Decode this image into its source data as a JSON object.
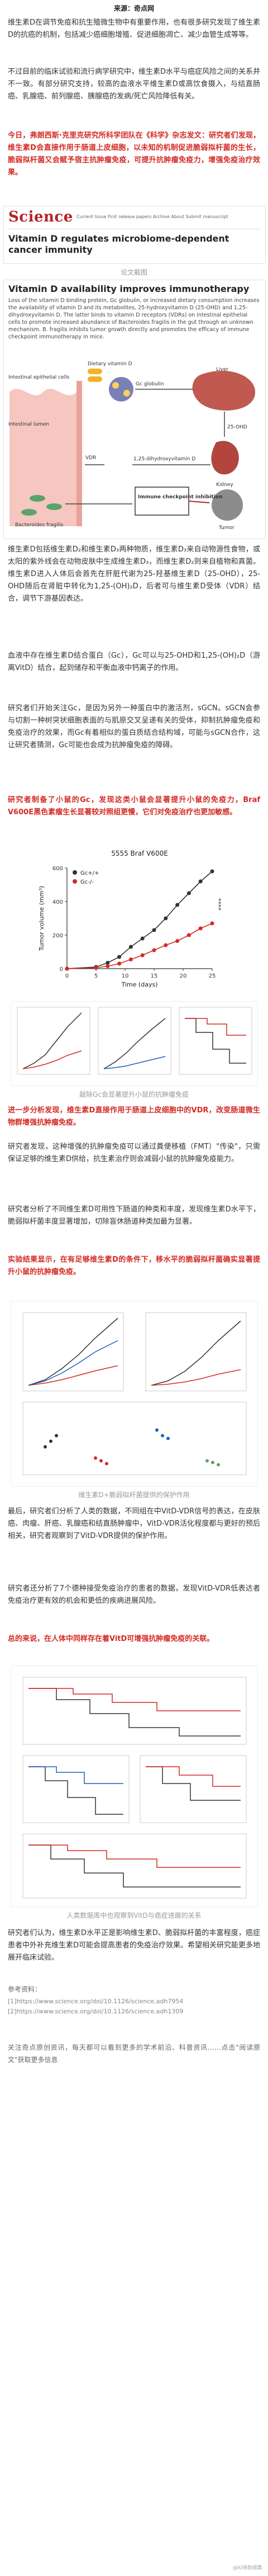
{
  "source_line": "来源：奇点网",
  "p1": "维生素D在调节免疫和抗生殖微生物中有重要作用，也有很多研究发现了维生素D的抗癌的机制，包括减少癌细胞增殖、促进细胞凋亡、减少血管生成等等。",
  "p2": "不过目前的临床试验和流行病学研究中，维生素D水平与癌症风险之间的关系并不一致。有部分研究支持，较高的血液水平维生素D或高饮食摄入，与结直肠癌、乳腺癌、前列腺癌、胰腺癌的发病/死亡风险降低有关。",
  "p3_red": "今日，弗朗西斯·克里克研究所科学团队在《科学》杂志发文：研究者们发现，维生素D会直接作用于肠道上皮细胞，以未知的机制促进脆弱拟杆菌的生长，脆弱拟杆菌又会赋予宿主抗肿瘤免疫，可提升抗肿瘤免疫力，增强免疫治疗效果。",
  "science": {
    "logo": "Science",
    "meta": "Current Issue   First release papers   Archive   About   Submit manuscript",
    "title": "Vitamin D regulates microbiome-dependent cancer immunity",
    "caption": "论文截图"
  },
  "fig1": {
    "heading": "Vitamin D availability improves immunotherapy",
    "body": "Loss of the vitamin D binding protein, Gc globulin, or increased dietary consumption increases the availability of vitamin D and its metabolites, 25-hydroxyvitamin D (25-OHD) and 1,25-dihydroxyvitamin D. The latter binds to vitamin D receptors (VDRs) on intestinal epithelial cells to promote increased abundance of Bacteroides fragilis in the gut through an unknown mechanism. B. fragilis inhibits tumor growth directly and promotes the efficacy of immune checkpoint immunotherapy in mice.",
    "labels": [
      "Dietary vitamin D",
      "Gc globulin",
      "Liver",
      "Intestinal epithelial cells",
      "Intestinal lumen",
      "VDR",
      "25-OHD",
      "1,25-dihydroxyvitamin D",
      "Kidney",
      "Bacteroides fragilis",
      "Immune checkpoint inhibition",
      "Tumor"
    ]
  },
  "p4": "维生素D包括维生素D₂和维生素D₃两种物质，维生素D₃来自动物源性食物，或太阳的紫外线会在动物皮肤中生成维生素D₃，而维生素D₂则来自植物和真菌。维生素D进入人体后会首先在肝脏代谢为25-羟基维生素D（25-OHD），25-OHD随后在肾脏中转化为1,25-(OH)₂D，后者可与维生素D受体（VDR）结合，调节下游基因表达。",
  "p5": "血液中存在维生素D结合蛋白（Gc），Gc可以与25-OHD和1,25-(OH)₂D（游离VitD）结合，起到储存和平衡血液中钙离子的作用。",
  "p6": "研究者们开始关注Gc，是因为另外一种蛋白中的激活剂，sGCN。sGCN会参与切割一种树突状细胞表面的与肌原交叉呈递有关的受体，抑制抗肿瘤免疫和免疫治疗的效果，而Gc有着相似的蛋白质结合结构域，可能与sGCN合作，这让研究者猜测，Gc可能也会成为抗肿瘤免疫的障碍。",
  "p7_red": "研究者制备了小鼠的Gc，发现这类小鼠会显著提升小鼠的免疫力，Braf V600E黑色素瘤生长显著较对照组更慢，它们对免疫治疗也更加敏感。",
  "fig2": {
    "title": "5555 Braf V600E",
    "legend": [
      "Gc+/+",
      "Gc-/-"
    ],
    "xlabel": "Time (days)",
    "ylabel": "Tumor volume (mm³)",
    "sig": "****",
    "caption": "敲除Gc会显著提升小鼠的抗肿瘤免疫"
  },
  "chart_data": [
    {
      "type": "line",
      "title": "5555 Braf V600E",
      "xlabel": "Time (days)",
      "ylabel": "Tumor volume (mm³)",
      "x": [
        0,
        5,
        7,
        9,
        11,
        13,
        15,
        17,
        19,
        21,
        23,
        25
      ],
      "xlim": [
        0,
        25
      ],
      "ylim": [
        0,
        600
      ],
      "series": [
        {
          "name": "Gc+/+",
          "values": [
            0,
            10,
            35,
            70,
            130,
            180,
            230,
            300,
            380,
            450,
            520,
            580
          ]
        },
        {
          "name": "Gc-/-",
          "values": [
            0,
            5,
            15,
            30,
            55,
            80,
            110,
            140,
            165,
            200,
            240,
            270
          ]
        }
      ]
    }
  ],
  "p8_red": "进一步分析发现，维生素D直接作用于肠道上皮细胞中的VDR，改变肠道微生物群增强抗肿瘤免疫。",
  "p9": "研究者发现，这种增强的抗肿瘤免疫可以通过粪便移植（FMT）\"传染\"，只需保证足够的维生素D供给，抗生素治疗则会减弱小鼠的抗肿瘤免疫能力。",
  "p10": "研究者分析了不同维生素D可用性下肠道的种类和丰度，发现维生素D水平下，脆弱拟杆菌丰度显著增加，切除盲休肠道种类加最为显著。",
  "p11_red": "实验结果显示，在有足够维生素D的条件下，移水平的脆弱拟杆菌确实显著提升小鼠的抗肿瘤免疫。",
  "fig3": {
    "caption": "维生素D+脆弱拟杆菌提供的保护作用"
  },
  "p12": "最后，研究者们分析了人类的数据，不同组在中VitD-VDR信号的表达，在皮肤癌、肉瘤、肝癌、乳腺癌和结直肠肿瘤中，VitD-VDR活化程度都与更好的预后相关，研究者观察到了VitD-VDR提供的保护作用。",
  "p13": "研究者还分析了7个德种接受免疫治疗的患者的数据，发现VitD-VDR低表达者免疫治疗更有效的机会和更低的疾病进展风险。",
  "p14": "总的来说，在人体中同样存在着VitD可增强抗肿瘤免疫的关联。",
  "fig4": {
    "caption": "人类数据库中也观察到VitD与癌症进展的关系"
  },
  "p15": "研究者们认为，维生素D水平正是影响维生素D、脆弱拟杆菌的丰富程度，癌症患者中外补充维生素D可能会提高患者的免疫治疗效果。希望相关研究能更多地展开临床试验。",
  "refs_title": "参考资料：",
  "refs": [
    "[1]https://www.science.org/doi/10.1126/science.adh7954",
    "[2]https://www.science.org/doi/10.1126/science.adh1309"
  ],
  "footer": "关注奇点原创资讯，每天都可以看到更多的学术前沿、科普资讯……点击\"阅读原文\"获取更多信息",
  "watermark": "@Ki晓数据集"
}
